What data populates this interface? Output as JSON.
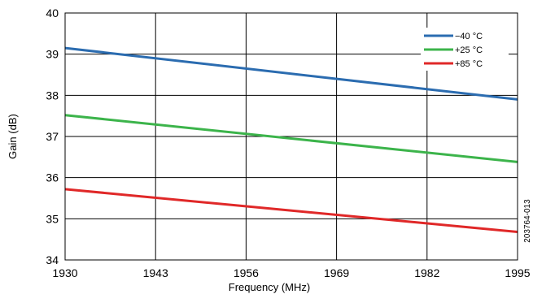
{
  "chart_data": {
    "type": "line",
    "title": "",
    "xlabel": "Frequency (MHz)",
    "ylabel": "Gain (dB)",
    "xlim": [
      1930,
      1995
    ],
    "ylim": [
      34,
      40
    ],
    "x_ticks": [
      "1930",
      "1943",
      "1956",
      "1969",
      "1982",
      "1995"
    ],
    "y_ticks": [
      "34",
      "35",
      "36",
      "37",
      "38",
      "39",
      "40"
    ],
    "grid": true,
    "legend_position": "top-right",
    "series": [
      {
        "name": "−40 °C",
        "color": "#2b6cb0",
        "x": [
          1930,
          1995
        ],
        "y": [
          39.15,
          37.9
        ]
      },
      {
        "name": "+25 °C",
        "color": "#3cb44b",
        "x": [
          1930,
          1995
        ],
        "y": [
          37.52,
          36.38
        ]
      },
      {
        "name": "+85 °C",
        "color": "#e02828",
        "x": [
          1930,
          1995
        ],
        "y": [
          35.72,
          34.68
        ]
      }
    ]
  },
  "figure_id": "203764-013"
}
